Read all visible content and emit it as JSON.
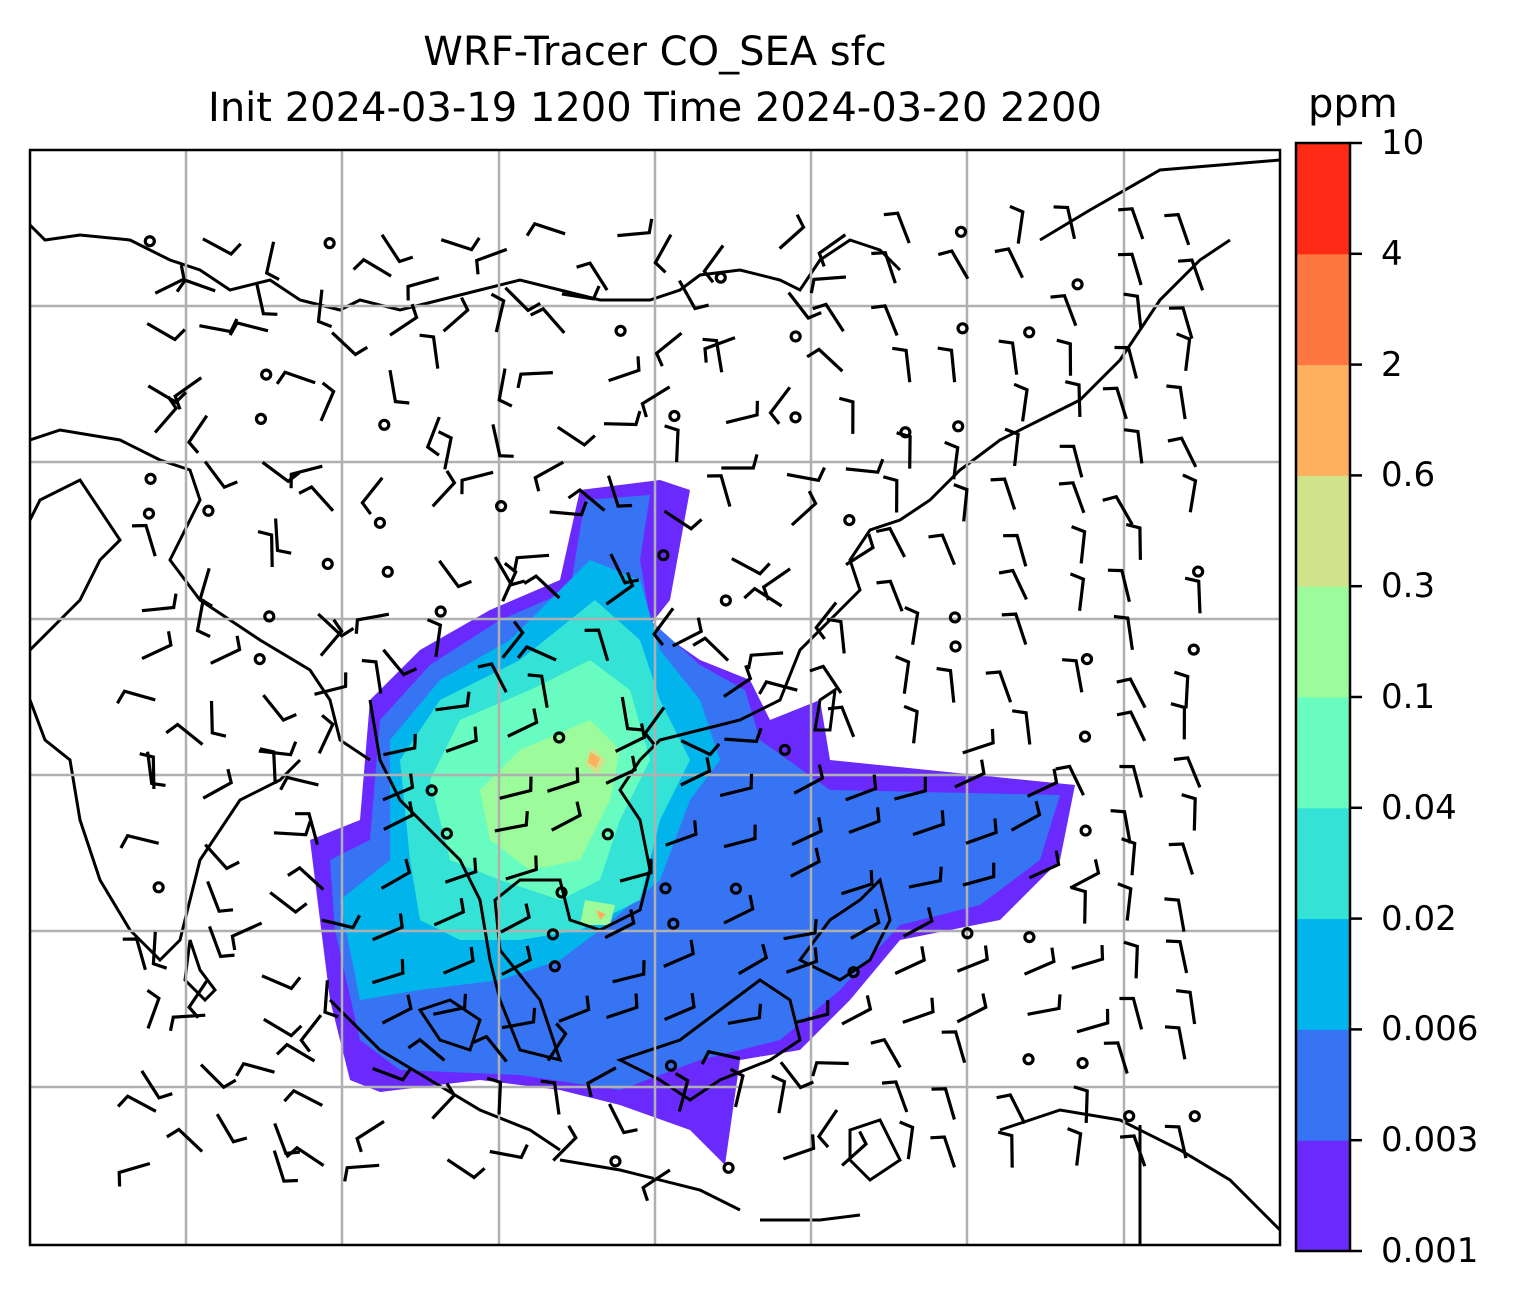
{
  "title": {
    "line1": "WRF-Tracer CO_SEA sfc",
    "line2": "Init 2024-03-19 1200 Time 2024-03-20 2200"
  },
  "colorbar": {
    "unit": "ppm",
    "tick_labels": [
      "0.001",
      "0.003",
      "0.006",
      "0.02",
      "0.04",
      "0.1",
      "0.3",
      "0.6",
      "2",
      "4",
      "10"
    ],
    "colors": [
      "#6a2afe",
      "#3674f4",
      "#02b4ec",
      "#34e2d6",
      "#68fcc0",
      "#9cfc9c",
      "#d0e28a",
      "#feb05e",
      "#fe7640",
      "#fe2a16"
    ]
  },
  "chart_data": {
    "type": "heatmap",
    "title": "WRF-Tracer CO_SEA sfc / Init 2024-03-19 1200 Time 2024-03-20 2200",
    "variable": "CO tracer surface concentration with wind barbs",
    "units": "ppm",
    "levels": [
      0.001,
      0.003,
      0.006,
      0.02,
      0.04,
      0.1,
      0.3,
      0.6,
      2,
      4,
      10
    ],
    "grid": true,
    "legend": "right colorbar"
  }
}
